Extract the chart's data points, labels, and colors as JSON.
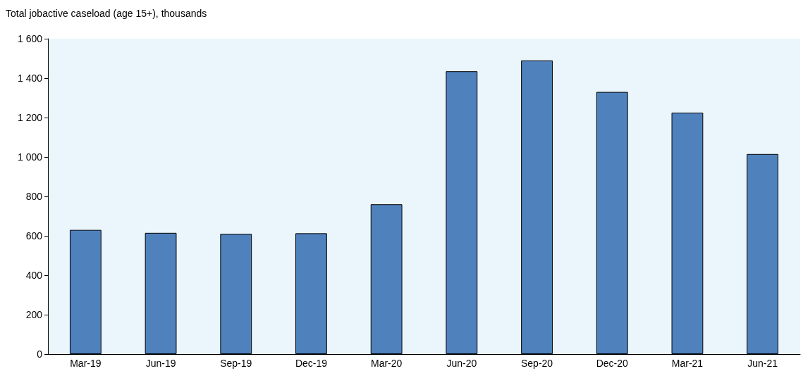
{
  "chart_data": {
    "type": "bar",
    "ylabel": "Total jobactive caseload (age 15+), thousands",
    "categories": [
      "Mar-19",
      "Jun-19",
      "Sep-19",
      "Dec-19",
      "Mar-20",
      "Jun-20",
      "Sep-20",
      "Dec-20",
      "Mar-21",
      "Jun-21"
    ],
    "values": [
      630,
      615,
      610,
      613,
      760,
      1435,
      1490,
      1330,
      1225,
      1015
    ],
    "color": "#4f81bd",
    "ylim": [
      0,
      1600
    ],
    "yticks": [
      0,
      200,
      400,
      600,
      800,
      {
        "value": 1000,
        "label": "1 000"
      },
      {
        "value": 1200,
        "label": "1 200"
      },
      {
        "value": 1400,
        "label": "1 400"
      },
      {
        "value": 1600,
        "label": "1 600"
      }
    ],
    "grid": false
  }
}
